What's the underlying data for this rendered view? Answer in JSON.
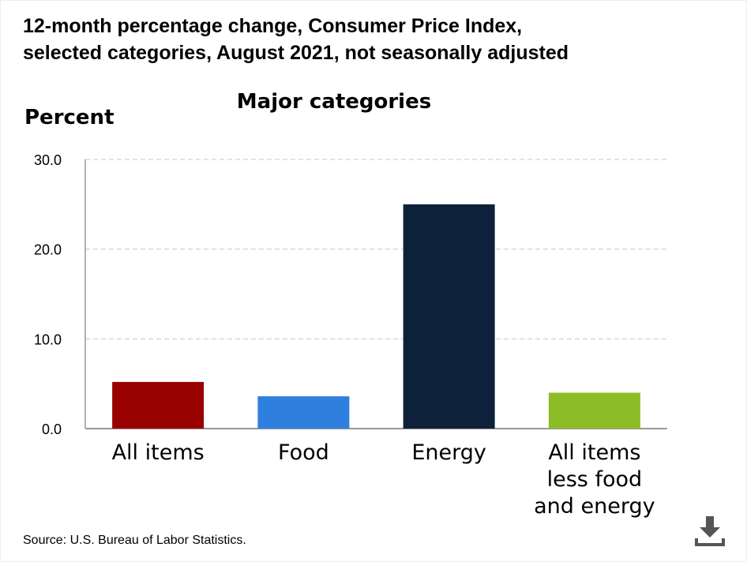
{
  "title_line1": "12-month percentage change, Consumer Price Index,",
  "title_line2": "selected categories, August 2021, not seasonally adjusted",
  "source": "Source: U.S. Bureau of Labor Statistics.",
  "download_icon": "download-icon",
  "chart_data": {
    "type": "bar",
    "title": "Major categories",
    "ylabel": "Percent",
    "xlabel": "",
    "ylim": [
      0,
      30
    ],
    "yticks": [
      "0.0",
      "10.0",
      "20.0",
      "30.0"
    ],
    "grid": true,
    "categories": [
      "All items",
      "Food",
      "Energy",
      "All items less food and energy"
    ],
    "category_lines": [
      [
        "All items"
      ],
      [
        "Food"
      ],
      [
        "Energy"
      ],
      [
        "All items",
        "less food",
        "and energy"
      ]
    ],
    "values": [
      5.2,
      3.6,
      25.0,
      4.0
    ],
    "colors": [
      "#990000",
      "#2f80de",
      "#0d223a",
      "#8cbd26"
    ]
  }
}
